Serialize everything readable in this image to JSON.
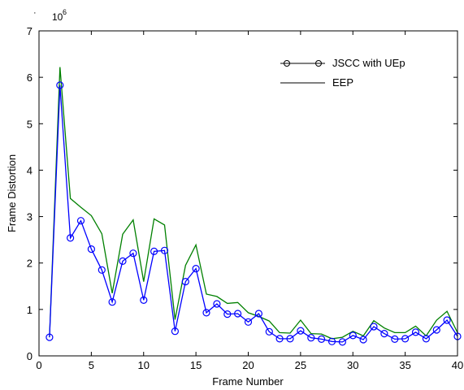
{
  "chart_data": {
    "type": "line",
    "xlabel": "Frame Number",
    "ylabel": "Frame Distortion",
    "exponent_label": "10",
    "exponent_power": "6",
    "exponent_prefix": "·",
    "xlim": [
      0,
      40
    ],
    "ylim": [
      0,
      7
    ],
    "xticks": [
      0,
      5,
      10,
      15,
      20,
      25,
      30,
      35,
      40
    ],
    "yticks": [
      0,
      1,
      2,
      3,
      4,
      5,
      6,
      7
    ],
    "legend_position": "top-right",
    "x": [
      1,
      2,
      3,
      4,
      5,
      6,
      7,
      8,
      9,
      10,
      11,
      12,
      13,
      14,
      15,
      16,
      17,
      18,
      19,
      20,
      21,
      22,
      23,
      24,
      25,
      26,
      27,
      28,
      29,
      30,
      31,
      32,
      33,
      34,
      35,
      36,
      37,
      38,
      39,
      40
    ],
    "series": [
      {
        "name": "JSCC with UEp",
        "color": "#0000ff",
        "marker": "circle",
        "values": [
          0.4,
          5.83,
          2.54,
          2.91,
          2.3,
          1.85,
          1.16,
          2.04,
          2.21,
          1.2,
          2.25,
          2.27,
          0.53,
          1.6,
          1.88,
          0.93,
          1.12,
          0.9,
          0.91,
          0.73,
          0.91,
          0.52,
          0.37,
          0.37,
          0.54,
          0.39,
          0.36,
          0.31,
          0.3,
          0.44,
          0.35,
          0.63,
          0.48,
          0.36,
          0.37,
          0.51,
          0.37,
          0.56,
          0.77,
          0.42
        ]
      },
      {
        "name": "EEP",
        "color": "#008000",
        "marker": "none",
        "values": [
          0.4,
          6.22,
          3.39,
          3.2,
          3.02,
          2.63,
          1.35,
          2.62,
          2.93,
          1.6,
          2.95,
          2.82,
          0.78,
          1.95,
          2.39,
          1.33,
          1.28,
          1.13,
          1.15,
          0.93,
          0.85,
          0.75,
          0.5,
          0.49,
          0.77,
          0.48,
          0.47,
          0.37,
          0.4,
          0.53,
          0.43,
          0.76,
          0.6,
          0.5,
          0.5,
          0.64,
          0.43,
          0.77,
          0.96,
          0.5
        ]
      }
    ]
  }
}
